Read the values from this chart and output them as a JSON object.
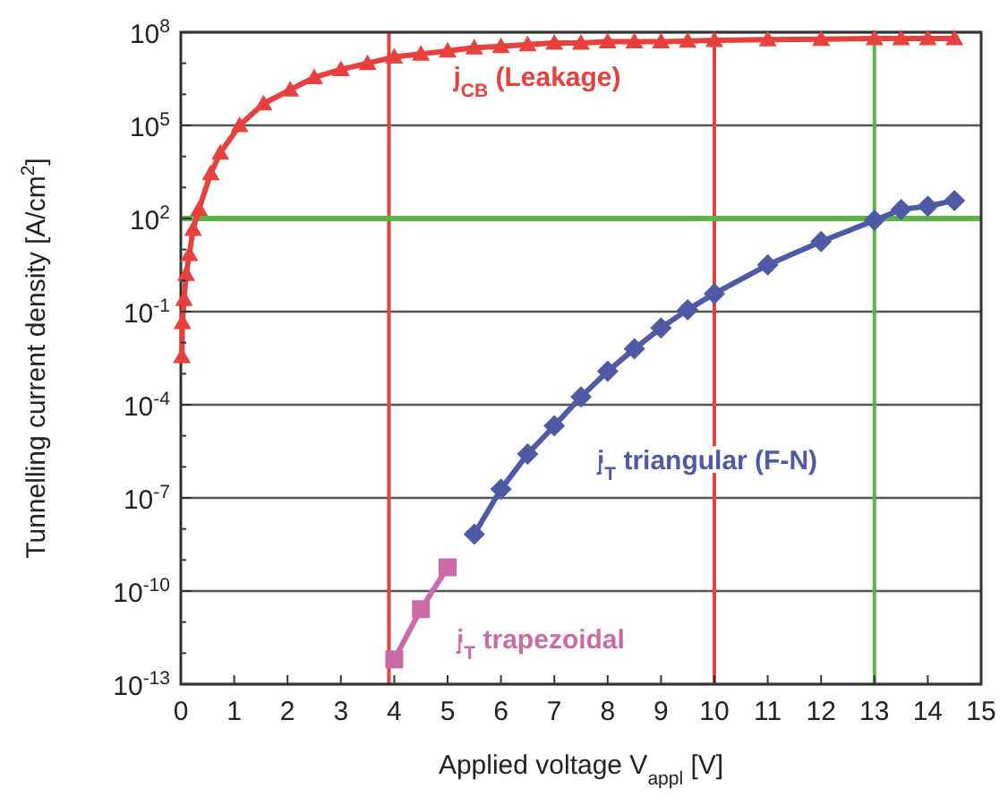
{
  "chart_data": {
    "type": "line",
    "xlabel": "Applied voltage V$_{appl}$ [V]",
    "ylabel": "Tunnelling current density [A/cm$^{2}$]",
    "log": "y",
    "grid": "y",
    "xlim": [
      0,
      15
    ],
    "xticks": [
      0,
      1,
      2,
      3,
      4,
      5,
      6,
      7,
      8,
      9,
      10,
      11,
      12,
      13,
      14,
      15
    ],
    "ylim": [
      1e-13,
      100000000.0
    ],
    "yticks": [
      {
        "value": 1e-13,
        "label": "10$^{-13}$"
      },
      {
        "value": 1e-12,
        "label": null
      },
      {
        "value": 1e-11,
        "label": null
      },
      {
        "value": 1e-10,
        "label": "10$^{-10}$"
      },
      {
        "value": 1e-09,
        "label": null
      },
      {
        "value": 1e-08,
        "label": null
      },
      {
        "value": 1e-07,
        "label": "10$^{-7}$"
      },
      {
        "value": 1e-06,
        "label": null
      },
      {
        "value": 1e-05,
        "label": null
      },
      {
        "value": 0.0001,
        "label": "10$^{-4}$"
      },
      {
        "value": 0.001,
        "label": null
      },
      {
        "value": 0.01,
        "label": null
      },
      {
        "value": 0.1,
        "label": "10$^{-1}$"
      },
      {
        "value": 1,
        "label": null
      },
      {
        "value": 10,
        "label": null
      },
      {
        "value": 100,
        "label": "10$^{2}$"
      },
      {
        "value": 1000,
        "label": null
      },
      {
        "value": 10000,
        "label": null
      },
      {
        "value": 100000,
        "label": "10$^{5}$"
      },
      {
        "value": 1000000,
        "label": null
      },
      {
        "value": 10000000,
        "label": null
      },
      {
        "value": 100000000,
        "label": "10$^{8}$"
      }
    ],
    "series": [
      {
        "name": "j$_{CB}$ (Leakage)",
        "color": "#e8403c",
        "marker": "triangle",
        "x": [
          0.02,
          0.03,
          0.06,
          0.1,
          0.16,
          0.23,
          0.34,
          0.56,
          0.74,
          1.1,
          1.55,
          2.05,
          2.5,
          3,
          3.5,
          4,
          4.5,
          5,
          5.5,
          6,
          6.5,
          7,
          7.5,
          8,
          8.5,
          9,
          9.5,
          10,
          11,
          12,
          13,
          13.5,
          14,
          14.5
        ],
        "values": [
          0.0036,
          0.045,
          0.25,
          1.6,
          7,
          45,
          200,
          2800,
          13000,
          100000,
          500000,
          1400000,
          3500000,
          6300000,
          10000000,
          16000000,
          20000000,
          25000000,
          32000000,
          35000000,
          40000000,
          45000000,
          45000000,
          50000000,
          50000000,
          50000000,
          52000000,
          55000000,
          58000000,
          60000000,
          63000000,
          63000000,
          63000000,
          63000000
        ]
      },
      {
        "name": "j$_{T}$ triangular (F-N)",
        "color": "#4f5aa6",
        "marker": "diamond",
        "x": [
          5.5,
          6,
          6.5,
          7,
          7.5,
          8,
          8.5,
          9,
          9.5,
          10,
          11,
          12,
          13,
          13.5,
          14,
          14.5
        ],
        "values": [
          6.8e-09,
          1.9e-07,
          2.6e-06,
          2.1e-05,
          0.00018,
          0.0012,
          0.0063,
          0.03,
          0.115,
          0.38,
          3.2,
          18,
          87,
          195,
          250,
          380
        ]
      },
      {
        "name": "j$_{T}$ trapezoidal",
        "color": "#c96ba8",
        "marker": "square",
        "x": [
          4,
          4.5,
          5
        ],
        "values": [
          6.3e-13,
          2.6e-11,
          5.8e-10
        ]
      }
    ],
    "ref_lines": [
      {
        "axis": "x",
        "value": 3.9,
        "color": "#e8403c"
      },
      {
        "axis": "x",
        "value": 10,
        "color": "#e8403c"
      },
      {
        "axis": "x",
        "value": 13,
        "color": "#5bb543"
      },
      {
        "axis": "y",
        "value": 100,
        "color": "#5bb543"
      }
    ]
  }
}
